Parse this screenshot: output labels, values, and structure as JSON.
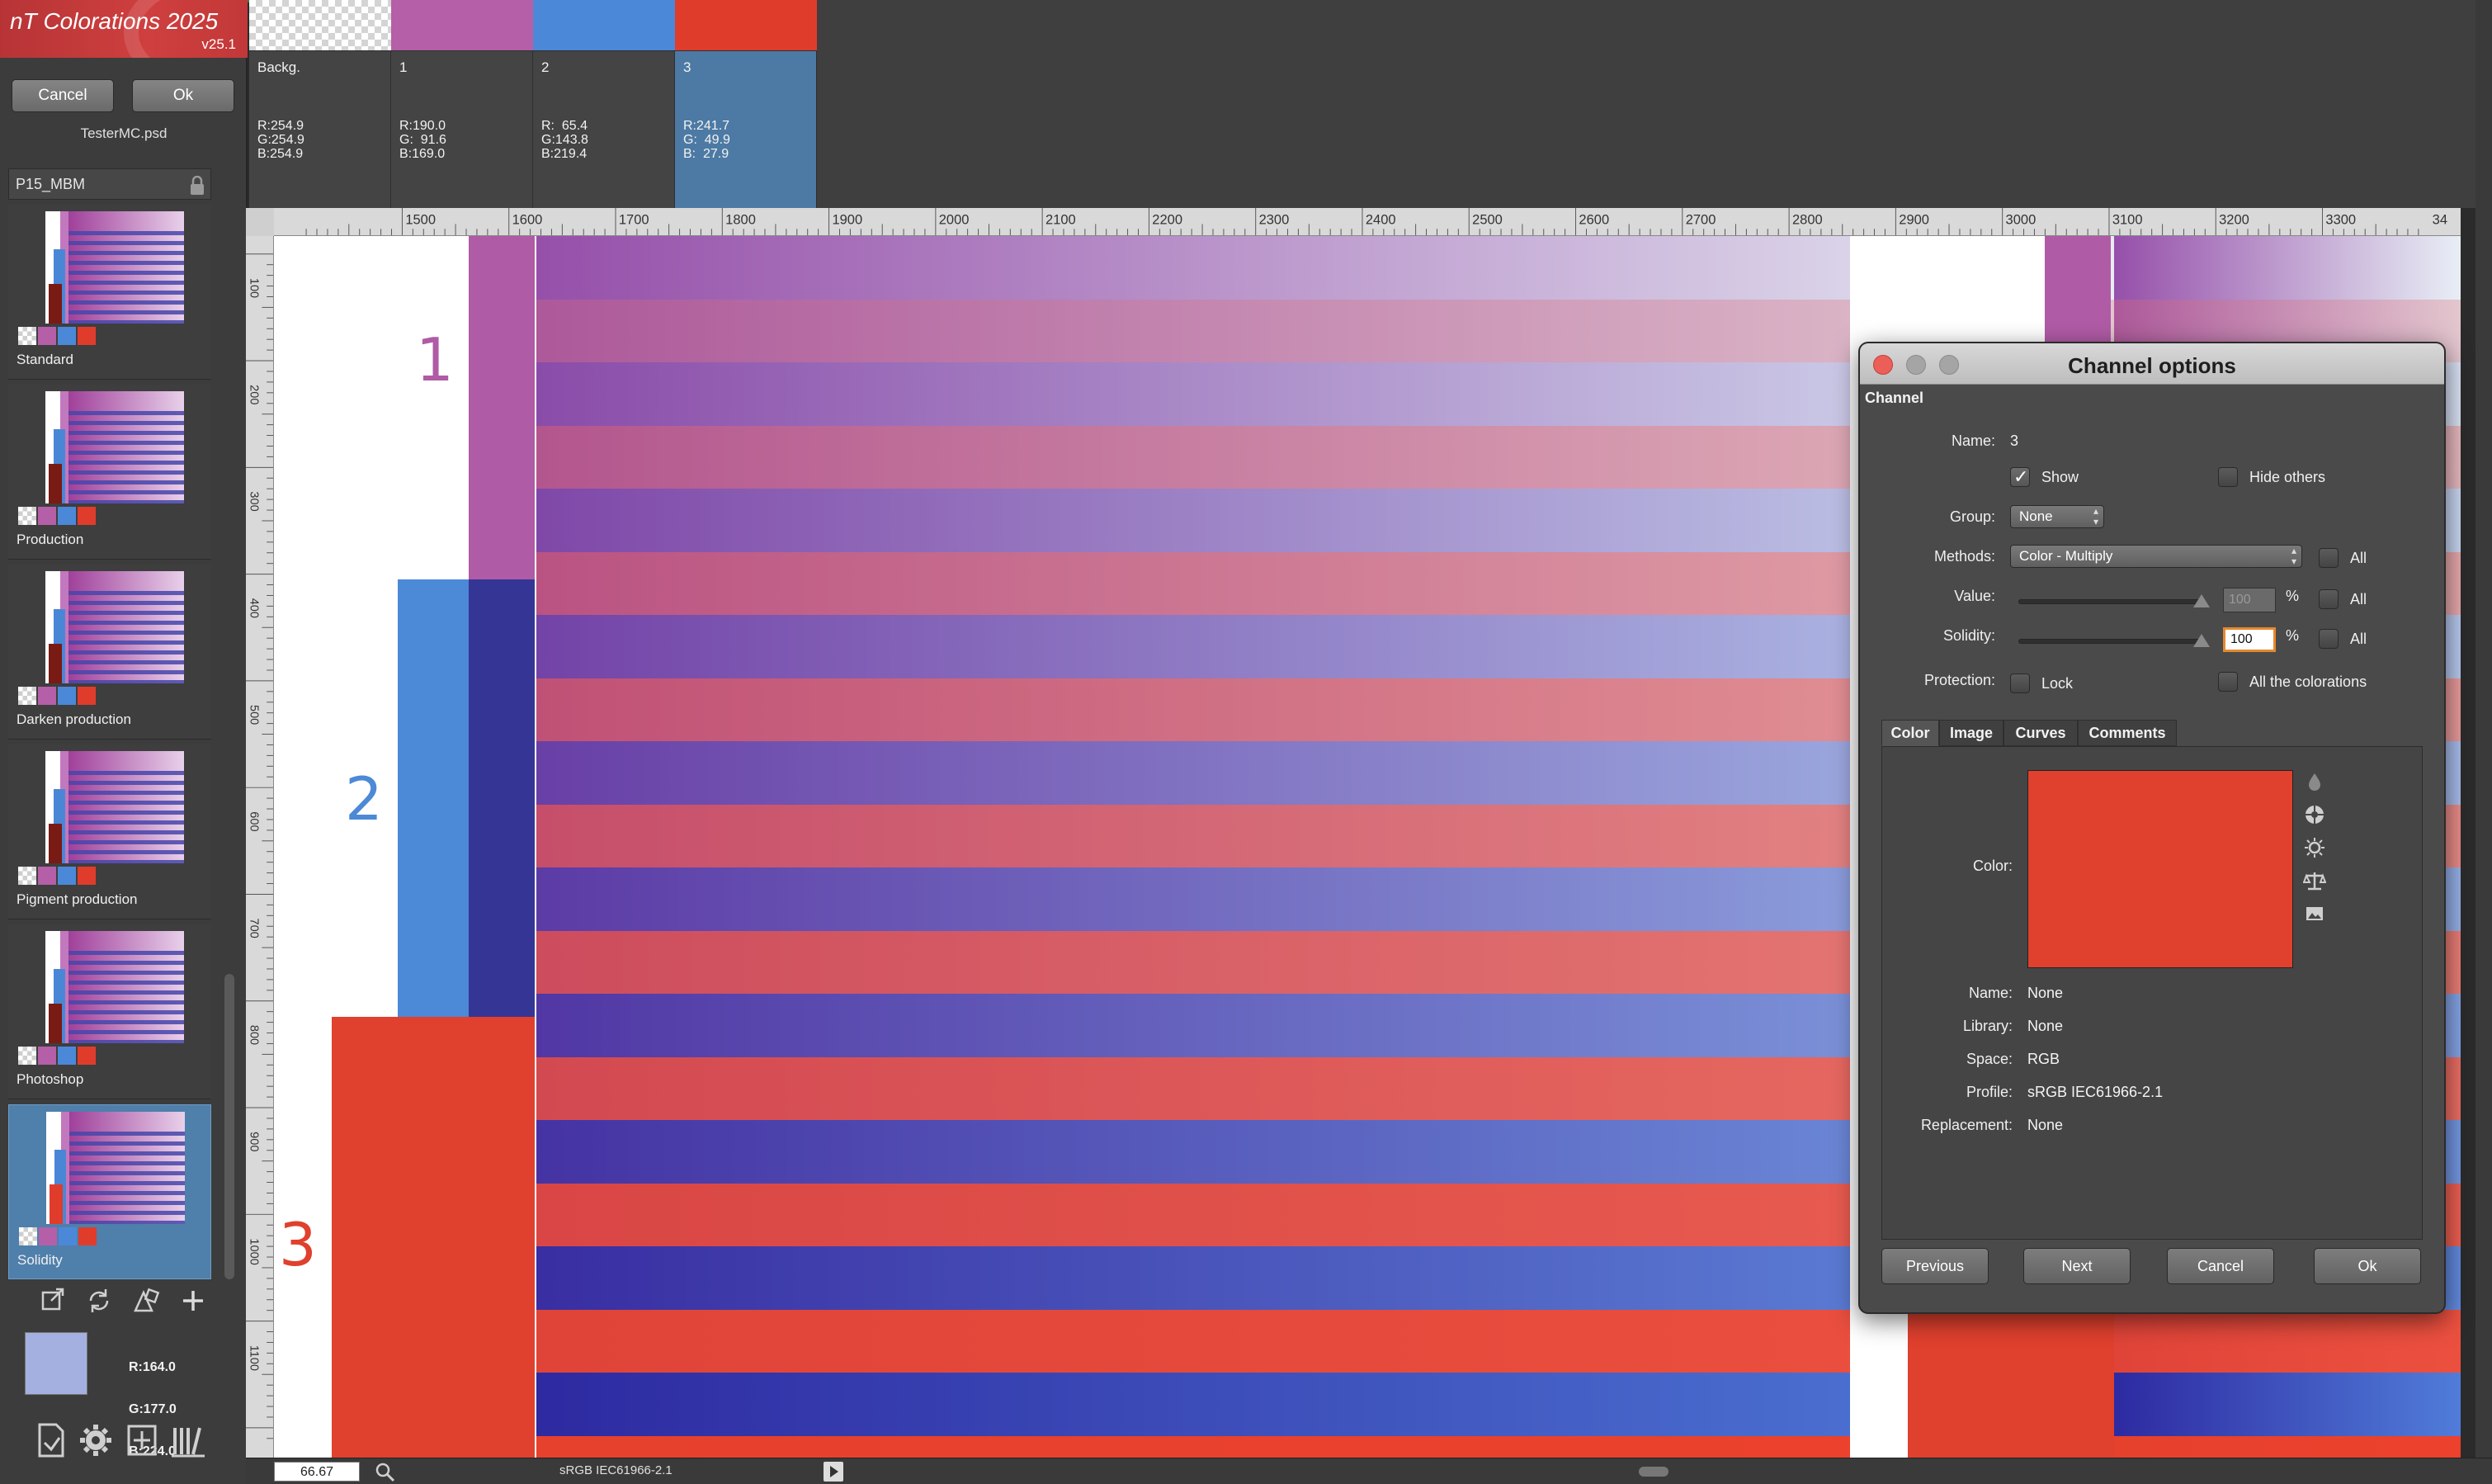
{
  "app": {
    "title": "nT Colorations 2025",
    "version": "v25.1"
  },
  "left": {
    "cancel_label": "Cancel",
    "ok_label": "Ok",
    "filename": "TesterMC.psd",
    "preset_group": "P15_MBM",
    "presets": [
      {
        "label": "Standard",
        "selected": false
      },
      {
        "label": "Production",
        "selected": false
      },
      {
        "label": "Darken production",
        "selected": false
      },
      {
        "label": "Pigment production",
        "selected": false
      },
      {
        "label": "Photoshop",
        "selected": false
      },
      {
        "label": "Solidity",
        "selected": true
      }
    ],
    "current_color": {
      "r": "R:164.0",
      "g": "G:177.0",
      "b": "B:224.0",
      "hex": "#a4b1e0"
    },
    "tool_icons": [
      "export-icon",
      "refresh-icon",
      "shapes-icon",
      "add-icon"
    ],
    "bottom_icons": [
      "document-icon",
      "gear-icon",
      "transform-icon",
      "library-icon"
    ]
  },
  "channels": [
    {
      "name": "Backg.",
      "r": "R:254.9",
      "g": "G:254.9",
      "b": "B:254.9",
      "swatch": "checker",
      "selected": false
    },
    {
      "name": "1",
      "r": "R:190.0",
      "g": "G:  91.6",
      "b": "B:169.0",
      "swatch": "#b55fa8",
      "selected": false
    },
    {
      "name": "2",
      "r": "R:  65.4",
      "g": "G:143.8",
      "b": "B:219.4",
      "swatch": "#4b89d8",
      "selected": false
    },
    {
      "name": "3",
      "r": "R:241.7",
      "g": "G:  49.9",
      "b": "B:  27.9",
      "swatch": "#e03c2c",
      "selected": true
    }
  ],
  "ruler": {
    "h_labels": [
      "1500",
      "1600",
      "1700",
      "1800",
      "1900",
      "2000",
      "2100",
      "2200",
      "2300",
      "2400",
      "2500",
      "2600",
      "2700",
      "2800",
      "2900",
      "3000",
      "3100",
      "3200",
      "3300",
      "34"
    ],
    "v_labels": [
      "100",
      "200",
      "300",
      "400",
      "500",
      "600",
      "700",
      "800",
      "900",
      "1000",
      "1100"
    ]
  },
  "canvas": {
    "labels": [
      "1",
      "2",
      "3"
    ],
    "colors": {
      "c1": "#b05ba6",
      "c2": "#4c89d7",
      "c2_dark": "#343595",
      "c3": "#e0402e"
    }
  },
  "status": {
    "zoom": "66.67",
    "profile": "sRGB IEC61966-2.1"
  },
  "dialog": {
    "title": "Channel options",
    "section": "Channel",
    "name_label": "Name:",
    "name_value": "3",
    "show_label": "Show",
    "show_checked": true,
    "hide_others_label": "Hide others",
    "group_label": "Group:",
    "group_value": "None",
    "methods_label": "Methods:",
    "methods_value": "Color - Multiply",
    "value_label": "Value:",
    "value_number": "100",
    "solidity_label": "Solidity:",
    "solidity_number": "100",
    "percent": "%",
    "all_label": "All",
    "protection_label": "Protection:",
    "lock_label": "Lock",
    "all_colorations_label": "All the colorations",
    "tabs": [
      "Color",
      "Image",
      "Curves",
      "Comments"
    ],
    "active_tab": "Color",
    "color_label": "Color:",
    "color_hex": "#e0402e",
    "info": [
      {
        "label": "Name:",
        "value": "None"
      },
      {
        "label": "Library:",
        "value": "None"
      },
      {
        "label": "Space:",
        "value": "RGB"
      },
      {
        "label": "Profile:",
        "value": "sRGB IEC61966-2.1"
      },
      {
        "label": "Replacement:",
        "value": "None"
      }
    ],
    "side_icons": [
      "drop-icon",
      "color-wheel-icon",
      "brightness-icon",
      "balance-icon",
      "image-icon"
    ],
    "buttons": {
      "previous": "Previous",
      "next": "Next",
      "cancel": "Cancel",
      "ok": "Ok"
    }
  }
}
